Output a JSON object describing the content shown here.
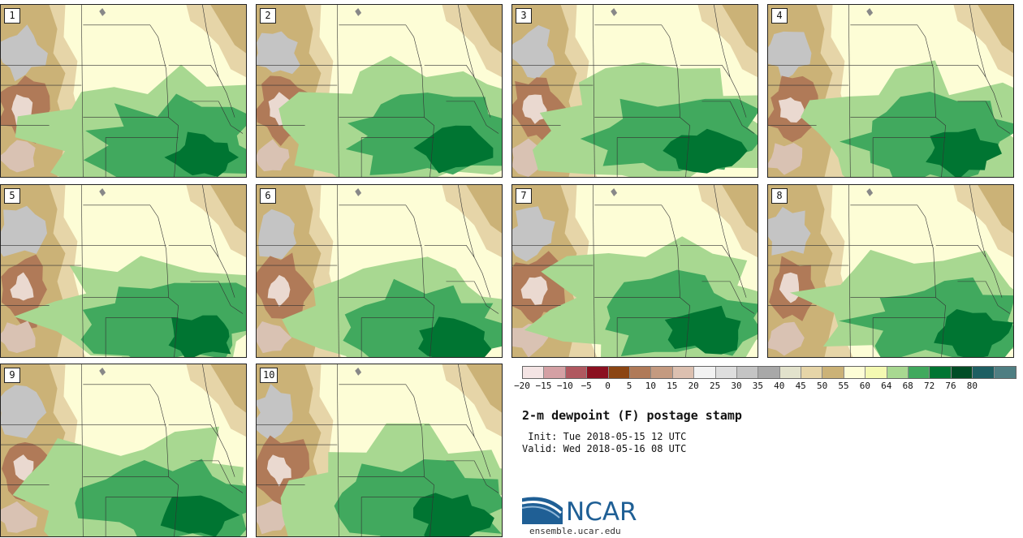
{
  "title": "2-m dewpoint (F) postage stamp",
  "init": {
    "label": " Init:",
    "value": "Tue 2018-05-15 12 UTC"
  },
  "valid": {
    "label": "Valid:",
    "value": "Wed 2018-05-16 08 UTC"
  },
  "colorbar": {
    "ticks": [
      "−20",
      "−15",
      "−10",
      "−5",
      "0",
      "5",
      "10",
      "15",
      "20",
      "25",
      "30",
      "35",
      "40",
      "45",
      "50",
      "55",
      "60",
      "64",
      "68",
      "72",
      "76",
      "80"
    ],
    "colors": [
      "#f4e4e4",
      "#d4a0a4",
      "#b05860",
      "#8b1020",
      "#8b4513",
      "#b07a58",
      "#c49a80",
      "#dcc0b0",
      "#f2f2f2",
      "#dedede",
      "#c4c4c4",
      "#a8a8a8",
      "#e2e2cc",
      "#e6d5a8",
      "#cbb277",
      "#fdfdd6",
      "#f4f9b2",
      "#a8d891",
      "#41a95e",
      "#007532",
      "#004d26",
      "#1d5f62",
      "#4e7e82"
    ]
  },
  "members": [
    "1",
    "2",
    "3",
    "4",
    "5",
    "6",
    "7",
    "8",
    "9",
    "10"
  ],
  "map_colors": {
    "land": "#fdfdd6",
    "light_green": "#a8d891",
    "mid_green": "#41a95e",
    "dark_green": "#007532",
    "tan": "#cbb277",
    "light_tan": "#e6d5a8",
    "gray": "#c4c4c4",
    "brown": "#b07a58",
    "border": "#333333"
  },
  "logo": {
    "text": "NCAR",
    "url": "ensemble.ucar.edu"
  }
}
